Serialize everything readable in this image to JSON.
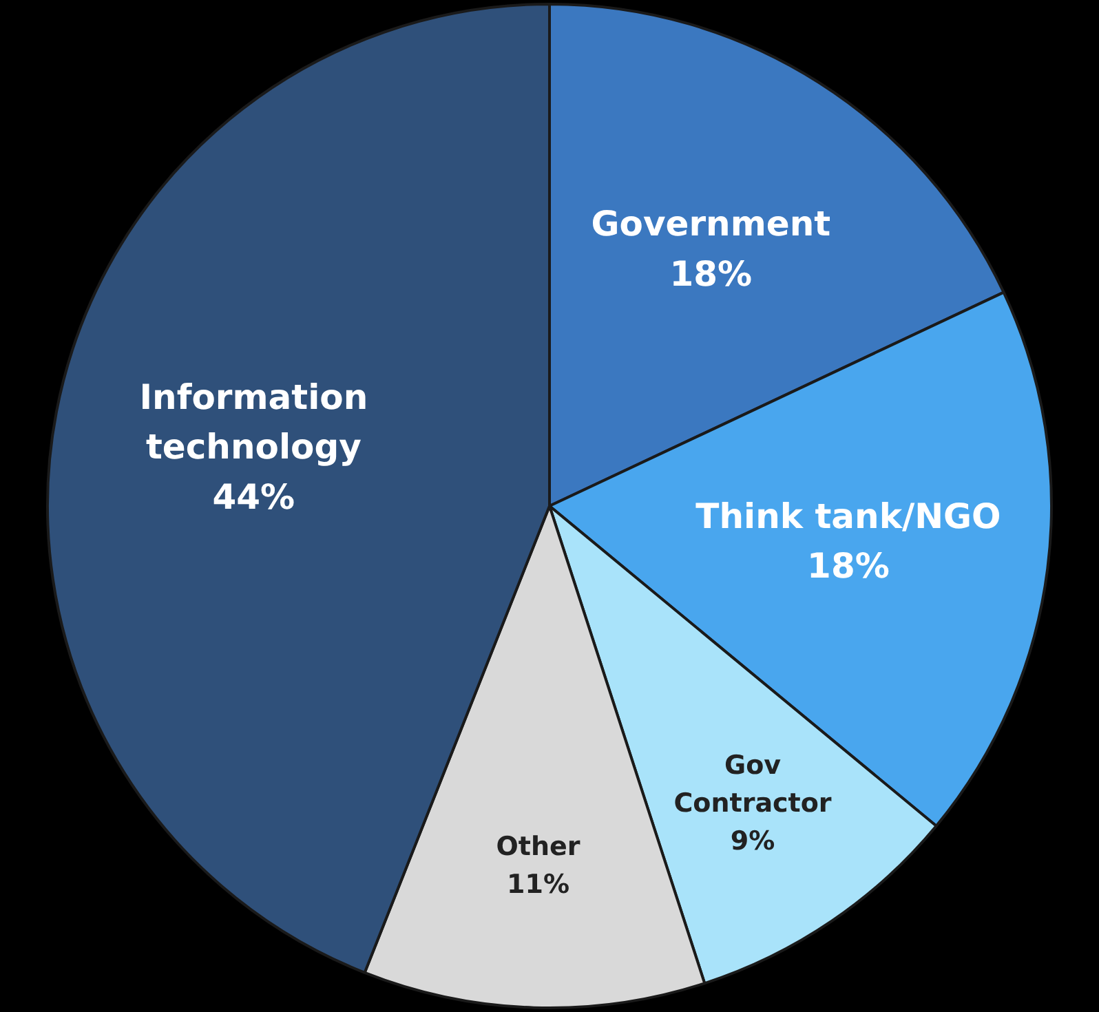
{
  "chart_data": {
    "type": "pie",
    "categories": [
      "Government",
      "Think tank/NGO",
      "Gov Contractor",
      "Other",
      "Information technology"
    ],
    "values": [
      18,
      18,
      9,
      11,
      44
    ],
    "colors": [
      "#3b78c0",
      "#49a6ee",
      "#a9e3fa",
      "#d9d9d9",
      "#2f507a"
    ],
    "value_labels": [
      "18%",
      "18%",
      "9%",
      "11%",
      "44%"
    ],
    "legend": false
  }
}
